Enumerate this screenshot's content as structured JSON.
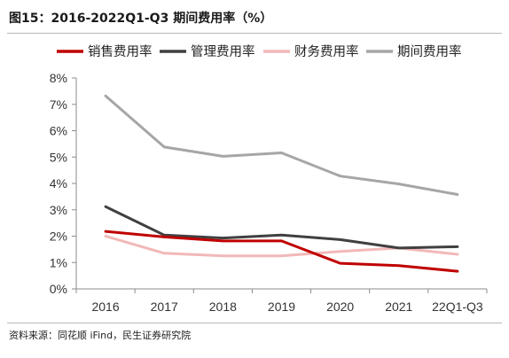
{
  "title": "图15：2016-2022Q1-Q3 期间费用率（%）",
  "source": "资料来源：同花顺 iFind，民生证券研究院",
  "chart_data": {
    "type": "line",
    "title": "图15：2016-2022Q1-Q3 期间费用率（%）",
    "categories": [
      "2016",
      "2017",
      "2018",
      "2019",
      "2020",
      "2021",
      "22Q1-Q3"
    ],
    "y_ticks": [
      "0%",
      "1%",
      "2%",
      "3%",
      "4%",
      "5%",
      "6%",
      "7%",
      "8%"
    ],
    "ylim": [
      0,
      8
    ],
    "y_unit": "%",
    "grid": false,
    "legend_position": "top",
    "series": [
      {
        "name": "销售费用率",
        "color": "#c00000",
        "values": [
          2.18,
          1.97,
          1.82,
          1.82,
          0.97,
          0.88,
          0.67
        ]
      },
      {
        "name": "管理费用率",
        "color": "#404040",
        "values": [
          3.12,
          2.04,
          1.93,
          2.04,
          1.87,
          1.55,
          1.6
        ]
      },
      {
        "name": "财务费用率",
        "color": "#f2b8b8",
        "values": [
          2.0,
          1.35,
          1.25,
          1.25,
          1.42,
          1.55,
          1.31
        ]
      },
      {
        "name": "期间费用率",
        "color": "#a6a6a6",
        "values": [
          7.32,
          5.38,
          5.03,
          5.16,
          4.28,
          3.98,
          3.58
        ]
      }
    ]
  }
}
